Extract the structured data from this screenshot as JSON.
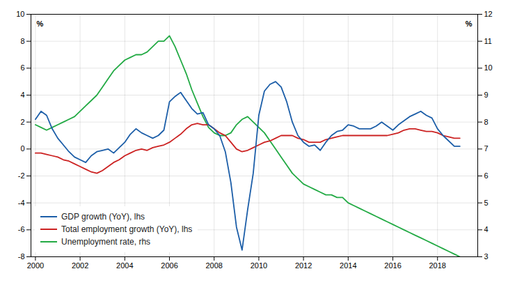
{
  "chart_data": {
    "type": "line",
    "ylabel": "%",
    "y2label": "%",
    "x": [
      2000.0,
      2000.25,
      2000.5,
      2000.75,
      2001.0,
      2001.25,
      2001.5,
      2001.75,
      2002.0,
      2002.25,
      2002.5,
      2002.75,
      2003.0,
      2003.25,
      2003.5,
      2003.75,
      2004.0,
      2004.25,
      2004.5,
      2004.75,
      2005.0,
      2005.25,
      2005.5,
      2005.75,
      2006.0,
      2006.25,
      2006.5,
      2006.75,
      2007.0,
      2007.25,
      2007.5,
      2007.75,
      2008.0,
      2008.25,
      2008.5,
      2008.75,
      2009.0,
      2009.25,
      2009.5,
      2009.75,
      2010.0,
      2010.25,
      2010.5,
      2010.75,
      2011.0,
      2011.25,
      2011.5,
      2011.75,
      2012.0,
      2012.25,
      2012.5,
      2012.75,
      2013.0,
      2013.25,
      2013.5,
      2013.75,
      2014.0,
      2014.25,
      2014.5,
      2014.75,
      2015.0,
      2015.25,
      2015.5,
      2015.75,
      2016.0,
      2016.25,
      2016.5,
      2016.75,
      2017.0,
      2017.25,
      2017.5,
      2017.75,
      2018.0,
      2018.25,
      2018.5,
      2018.75,
      2019.0
    ],
    "series": [
      {
        "name": "GDP growth (YoY), lhs",
        "color": "#1c5ea8",
        "values": [
          2.2,
          2.8,
          2.5,
          1.5,
          0.8,
          0.3,
          -0.2,
          -0.6,
          -0.8,
          -1.0,
          -0.5,
          -0.2,
          -0.1,
          0.0,
          -0.3,
          0.1,
          0.5,
          1.1,
          1.5,
          1.2,
          1.0,
          0.8,
          1.0,
          1.4,
          3.5,
          3.9,
          4.2,
          3.6,
          3.0,
          2.6,
          2.7,
          1.8,
          1.5,
          1.0,
          -0.2,
          -2.5,
          -5.8,
          -7.5,
          -4.5,
          -1.8,
          2.5,
          4.3,
          4.8,
          5.0,
          4.6,
          3.5,
          2.0,
          1.0,
          0.5,
          0.2,
          0.3,
          -0.1,
          0.5,
          1.0,
          1.3,
          1.4,
          1.8,
          1.7,
          1.5,
          1.5,
          1.5,
          1.7,
          2.0,
          1.7,
          1.4,
          1.8,
          2.1,
          2.4,
          2.6,
          2.8,
          2.5,
          2.3,
          1.5,
          1.0,
          0.6,
          0.2,
          0.2
        ]
      },
      {
        "name": "Total employment growth (YoY), lhs",
        "color": "#cc2222",
        "values": [
          -0.3,
          -0.3,
          -0.4,
          -0.5,
          -0.6,
          -0.8,
          -0.9,
          -1.1,
          -1.3,
          -1.5,
          -1.7,
          -1.8,
          -1.6,
          -1.3,
          -1.0,
          -0.8,
          -0.5,
          -0.3,
          -0.1,
          0.0,
          -0.1,
          0.1,
          0.2,
          0.3,
          0.5,
          0.8,
          1.1,
          1.5,
          1.8,
          1.9,
          1.8,
          1.8,
          1.5,
          1.2,
          1.0,
          0.5,
          0.0,
          -0.2,
          -0.1,
          0.1,
          0.3,
          0.5,
          0.6,
          0.8,
          1.0,
          1.0,
          1.0,
          0.8,
          0.7,
          0.5,
          0.5,
          0.5,
          0.7,
          0.8,
          0.9,
          1.0,
          1.0,
          1.0,
          1.0,
          1.0,
          1.0,
          1.0,
          1.0,
          1.0,
          1.1,
          1.2,
          1.4,
          1.5,
          1.5,
          1.4,
          1.3,
          1.3,
          1.2,
          1.0,
          0.9,
          0.8,
          0.8
        ]
      },
      {
        "name": "Unemployment rate, rhs",
        "color": "#22aa44",
        "axis": "y2",
        "values": [
          7.9,
          7.8,
          7.7,
          7.8,
          7.9,
          8.0,
          8.1,
          8.2,
          8.4,
          8.6,
          8.8,
          9.0,
          9.3,
          9.6,
          9.9,
          10.1,
          10.3,
          10.4,
          10.5,
          10.5,
          10.6,
          10.8,
          11.0,
          11.0,
          11.2,
          10.8,
          10.3,
          9.8,
          9.2,
          8.7,
          8.2,
          7.8,
          7.6,
          7.5,
          7.5,
          7.6,
          7.9,
          8.1,
          8.2,
          8.0,
          7.8,
          7.6,
          7.3,
          7.0,
          6.7,
          6.4,
          6.1,
          5.9,
          5.7,
          5.6,
          5.5,
          5.4,
          5.3,
          5.3,
          5.2,
          5.2,
          5.0,
          4.9,
          4.8,
          4.7,
          4.6,
          4.5,
          4.4,
          4.3,
          4.2,
          4.1,
          4.0,
          3.9,
          3.8,
          3.7,
          3.6,
          3.5,
          3.4,
          3.3,
          3.2,
          3.1,
          3.0
        ]
      }
    ],
    "xlim": [
      1999.8,
      2019.8
    ],
    "xticks": [
      2000,
      2002,
      2004,
      2006,
      2008,
      2010,
      2012,
      2014,
      2016,
      2018
    ],
    "ylim": [
      -8,
      10
    ],
    "yticks": [
      -8,
      -6,
      -4,
      -2,
      0,
      2,
      4,
      6,
      8,
      10
    ],
    "y2lim": [
      3,
      12
    ],
    "y2ticks": [
      3,
      4,
      5,
      6,
      7,
      8,
      9,
      10,
      11,
      12
    ],
    "grid": true,
    "legend": "lower left"
  }
}
